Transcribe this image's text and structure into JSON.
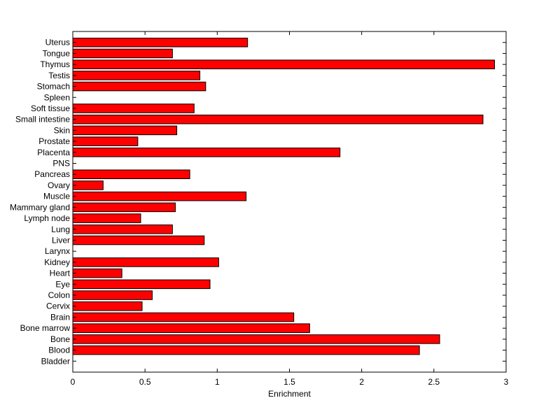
{
  "chart_data": {
    "type": "bar",
    "orientation": "horizontal",
    "xlabel": "Enrichment",
    "ylabel": "",
    "title": "",
    "xlim": [
      0,
      3
    ],
    "x_ticks": [
      0,
      0.5,
      1,
      1.5,
      2,
      2.5,
      3
    ],
    "x_tick_labels": [
      "0",
      "0.5",
      "1",
      "1.5",
      "2",
      "2.5",
      "3"
    ],
    "grid": false,
    "bar_color": "#ff0000",
    "categories": [
      "Bladder",
      "Blood",
      "Bone",
      "Bone marrow",
      "Brain",
      "Cervix",
      "Colon",
      "Eye",
      "Heart",
      "Kidney",
      "Larynx",
      "Liver",
      "Lung",
      "Lymph node",
      "Mammary gland",
      "Muscle",
      "Ovary",
      "Pancreas",
      "PNS",
      "Placenta",
      "Prostate",
      "Skin",
      "Small intestine",
      "Soft tissue",
      "Spleen",
      "Stomach",
      "Testis",
      "Thymus",
      "Tongue",
      "Uterus"
    ],
    "values": [
      0,
      2.4,
      2.54,
      1.64,
      1.53,
      0.48,
      0.55,
      0.95,
      0.34,
      1.01,
      0,
      0.91,
      0.69,
      0.47,
      0.71,
      1.2,
      0.21,
      0.81,
      0,
      1.85,
      0.45,
      0.72,
      2.84,
      0.84,
      0,
      0.92,
      0.88,
      2.92,
      0.69,
      1.21
    ]
  }
}
